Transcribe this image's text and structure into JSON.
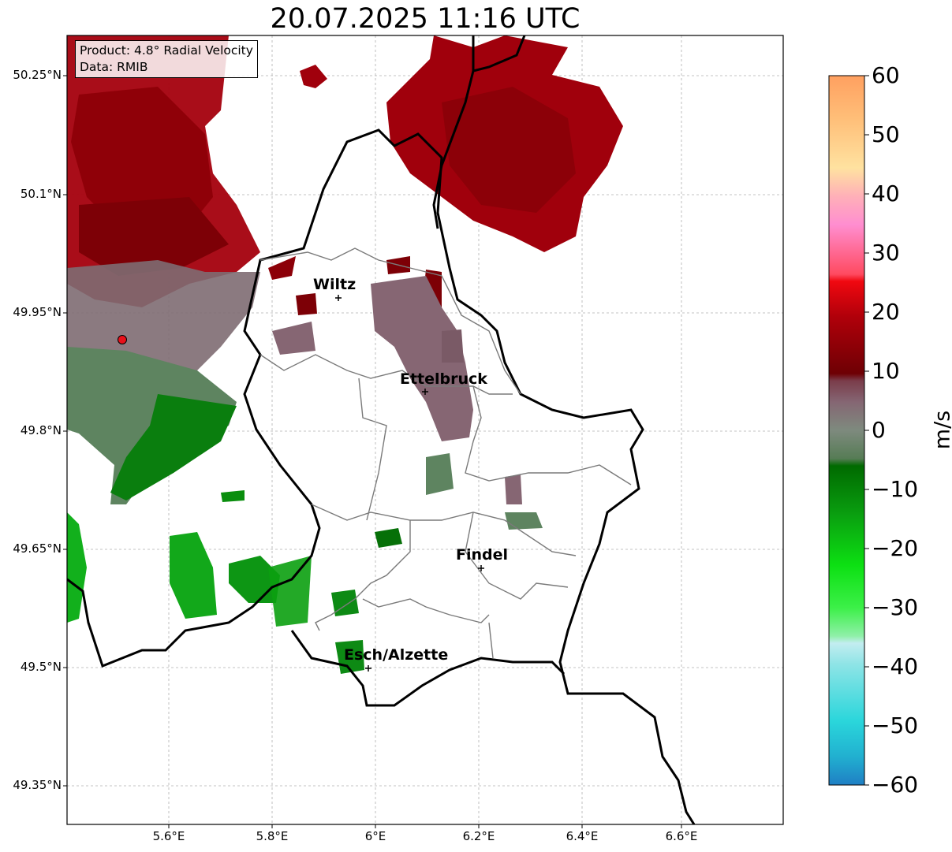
{
  "title": "20.07.2025 11:16 UTC",
  "info_box": {
    "product": "Product: 4.8° Radial Velocity",
    "data": "Data: RMIB"
  },
  "lat_ticks": [
    "50.25°N",
    "50.1°N",
    "49.95°N",
    "49.8°N",
    "49.65°N",
    "49.5°N",
    "49.35°N"
  ],
  "lon_ticks": [
    "5.6°E",
    "5.8°E",
    "6°E",
    "6.2°E",
    "6.4°E",
    "6.6°E"
  ],
  "colorbar": {
    "label": "m/s",
    "ticks": [
      "60",
      "50",
      "40",
      "30",
      "20",
      "10",
      "0",
      "−10",
      "−20",
      "−30",
      "−40",
      "−50",
      "−60"
    ],
    "range": [
      -60,
      60
    ]
  },
  "cities": [
    {
      "name": "Wiltz"
    },
    {
      "name": "Ettelbruck"
    },
    {
      "name": "Findel"
    },
    {
      "name": "Esch/Alzette"
    }
  ],
  "colors": {
    "outbound_dark_red": "#9b0008",
    "near_zero": "#8a6e78",
    "inbound_green": "#0aa010",
    "border": "#000000"
  }
}
